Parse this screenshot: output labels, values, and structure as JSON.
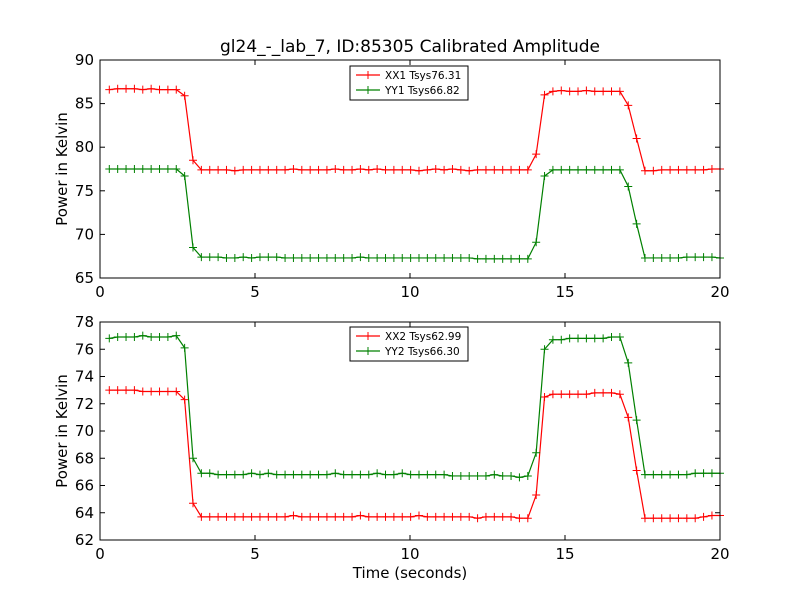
{
  "figure": {
    "title": "gl24_-_lab_7, ID:85305 Calibrated Amplitude"
  },
  "chart_data": [
    {
      "type": "line",
      "title": "gl24_-_lab_7, ID:85305 Calibrated Amplitude",
      "xlabel": "",
      "ylabel": "Power in Kelvin",
      "xlim": [
        0,
        20
      ],
      "ylim": [
        65,
        90
      ],
      "xticks": [
        "0",
        "5",
        "10",
        "15",
        "20"
      ],
      "yticks": [
        "65",
        "70",
        "75",
        "80",
        "85",
        "90"
      ],
      "grid": false,
      "legend_position": "top-center",
      "x": [
        0.3,
        0.57,
        0.84,
        1.11,
        1.38,
        1.65,
        1.92,
        2.19,
        2.46,
        2.73,
        3.0,
        3.27,
        3.54,
        3.81,
        4.08,
        4.35,
        4.62,
        4.89,
        5.16,
        5.43,
        5.7,
        5.97,
        6.24,
        6.51,
        6.78,
        7.05,
        7.32,
        7.59,
        7.86,
        8.13,
        8.4,
        8.67,
        8.94,
        9.21,
        9.48,
        9.75,
        10.02,
        10.29,
        10.56,
        10.83,
        11.1,
        11.37,
        11.64,
        11.91,
        12.18,
        12.45,
        12.72,
        12.99,
        13.26,
        13.53,
        13.8,
        14.07,
        14.34,
        14.61,
        14.88,
        15.15,
        15.42,
        15.69,
        15.96,
        16.23,
        16.5,
        16.77,
        17.04,
        17.31,
        17.58,
        17.85,
        18.12,
        18.39,
        18.66,
        18.93,
        19.2,
        19.47,
        19.74,
        20.0
      ],
      "series": [
        {
          "name": "XX1 Tsys76.31",
          "color": "#ff0000",
          "values": [
            86.6,
            86.7,
            86.7,
            86.7,
            86.6,
            86.7,
            86.6,
            86.6,
            86.6,
            85.9,
            78.5,
            77.4,
            77.4,
            77.4,
            77.4,
            77.3,
            77.4,
            77.4,
            77.4,
            77.4,
            77.4,
            77.4,
            77.5,
            77.4,
            77.4,
            77.4,
            77.4,
            77.5,
            77.4,
            77.4,
            77.5,
            77.4,
            77.5,
            77.4,
            77.4,
            77.4,
            77.4,
            77.3,
            77.4,
            77.5,
            77.4,
            77.5,
            77.4,
            77.3,
            77.4,
            77.4,
            77.4,
            77.4,
            77.4,
            77.4,
            77.4,
            79.2,
            86.0,
            86.4,
            86.5,
            86.4,
            86.4,
            86.5,
            86.4,
            86.4,
            86.4,
            86.4,
            84.8,
            81.0,
            77.3,
            77.3,
            77.4,
            77.4,
            77.4,
            77.4,
            77.4,
            77.4,
            77.5,
            77.5
          ]
        },
        {
          "name": "YY1 Tsys66.82",
          "color": "#008000",
          "values": [
            77.5,
            77.5,
            77.5,
            77.5,
            77.5,
            77.5,
            77.5,
            77.5,
            77.5,
            76.7,
            68.5,
            67.4,
            67.4,
            67.4,
            67.3,
            67.3,
            67.4,
            67.3,
            67.4,
            67.4,
            67.4,
            67.3,
            67.3,
            67.3,
            67.3,
            67.3,
            67.3,
            67.3,
            67.3,
            67.3,
            67.4,
            67.3,
            67.3,
            67.3,
            67.3,
            67.3,
            67.3,
            67.3,
            67.3,
            67.3,
            67.3,
            67.3,
            67.3,
            67.3,
            67.2,
            67.2,
            67.2,
            67.2,
            67.2,
            67.2,
            67.2,
            69.1,
            76.7,
            77.4,
            77.4,
            77.4,
            77.4,
            77.4,
            77.4,
            77.4,
            77.4,
            77.4,
            75.5,
            71.2,
            67.3,
            67.3,
            67.3,
            67.3,
            67.3,
            67.4,
            67.4,
            67.4,
            67.4,
            67.3
          ]
        }
      ]
    },
    {
      "type": "line",
      "title": "",
      "xlabel": "Time (seconds)",
      "ylabel": "Power in Kelvin",
      "xlim": [
        0,
        20
      ],
      "ylim": [
        62,
        78
      ],
      "xticks": [
        "0",
        "5",
        "10",
        "15",
        "20"
      ],
      "yticks": [
        "62",
        "64",
        "66",
        "68",
        "70",
        "72",
        "74",
        "76",
        "78"
      ],
      "grid": false,
      "legend_position": "top-center",
      "x": [
        0.3,
        0.57,
        0.84,
        1.11,
        1.38,
        1.65,
        1.92,
        2.19,
        2.46,
        2.73,
        3.0,
        3.27,
        3.54,
        3.81,
        4.08,
        4.35,
        4.62,
        4.89,
        5.16,
        5.43,
        5.7,
        5.97,
        6.24,
        6.51,
        6.78,
        7.05,
        7.32,
        7.59,
        7.86,
        8.13,
        8.4,
        8.67,
        8.94,
        9.21,
        9.48,
        9.75,
        10.02,
        10.29,
        10.56,
        10.83,
        11.1,
        11.37,
        11.64,
        11.91,
        12.18,
        12.45,
        12.72,
        12.99,
        13.26,
        13.53,
        13.8,
        14.07,
        14.34,
        14.61,
        14.88,
        15.15,
        15.42,
        15.69,
        15.96,
        16.23,
        16.5,
        16.77,
        17.04,
        17.31,
        17.58,
        17.85,
        18.12,
        18.39,
        18.66,
        18.93,
        19.2,
        19.47,
        19.74,
        20.0
      ],
      "series": [
        {
          "name": "XX2 Tsys62.99",
          "color": "#ff0000",
          "values": [
            73.0,
            73.0,
            73.0,
            73.0,
            72.9,
            72.9,
            72.9,
            72.9,
            72.9,
            72.3,
            64.7,
            63.7,
            63.7,
            63.7,
            63.7,
            63.7,
            63.7,
            63.7,
            63.7,
            63.7,
            63.7,
            63.7,
            63.8,
            63.7,
            63.7,
            63.7,
            63.7,
            63.7,
            63.7,
            63.7,
            63.8,
            63.7,
            63.7,
            63.7,
            63.7,
            63.7,
            63.7,
            63.8,
            63.7,
            63.7,
            63.7,
            63.7,
            63.7,
            63.7,
            63.6,
            63.7,
            63.7,
            63.7,
            63.7,
            63.6,
            63.6,
            65.3,
            72.5,
            72.7,
            72.7,
            72.7,
            72.7,
            72.7,
            72.8,
            72.8,
            72.8,
            72.7,
            71.0,
            67.1,
            63.6,
            63.6,
            63.6,
            63.6,
            63.6,
            63.6,
            63.6,
            63.7,
            63.8,
            63.8
          ]
        },
        {
          "name": "YY2 Tsys66.30",
          "color": "#008000",
          "values": [
            76.8,
            76.9,
            76.9,
            76.9,
            77.0,
            76.9,
            76.9,
            76.9,
            77.0,
            76.1,
            68.0,
            66.9,
            66.9,
            66.8,
            66.8,
            66.8,
            66.8,
            66.9,
            66.8,
            66.9,
            66.8,
            66.8,
            66.8,
            66.8,
            66.8,
            66.8,
            66.8,
            66.9,
            66.8,
            66.8,
            66.8,
            66.8,
            66.9,
            66.8,
            66.8,
            66.9,
            66.8,
            66.8,
            66.8,
            66.8,
            66.8,
            66.7,
            66.7,
            66.7,
            66.7,
            66.7,
            66.8,
            66.7,
            66.7,
            66.6,
            66.7,
            68.4,
            76.0,
            76.7,
            76.7,
            76.8,
            76.8,
            76.8,
            76.8,
            76.8,
            76.9,
            76.9,
            75.0,
            70.8,
            66.8,
            66.8,
            66.8,
            66.8,
            66.8,
            66.8,
            66.9,
            66.9,
            66.9,
            66.9
          ]
        }
      ]
    }
  ]
}
